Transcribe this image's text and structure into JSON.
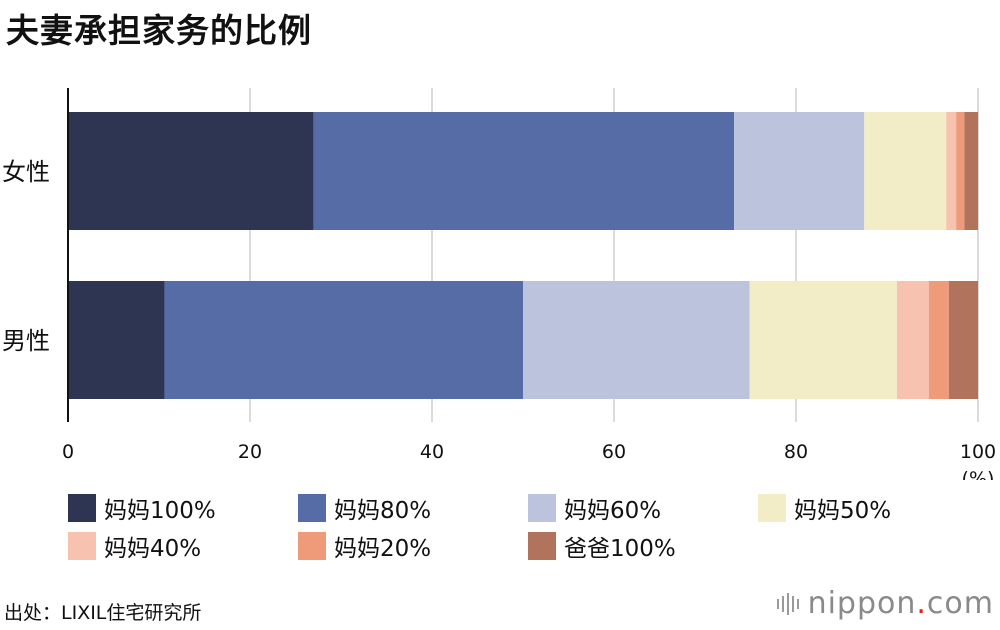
{
  "title": "夫妻承担家务的比例",
  "chart_data": {
    "type": "bar",
    "orientation": "horizontal",
    "stacked": true,
    "categories": [
      "女性",
      "男性"
    ],
    "series": [
      {
        "name": "妈妈100%",
        "color": "#2e3553",
        "values": [
          27.0,
          10.6
        ]
      },
      {
        "name": "妈妈80%",
        "color": "#566ca6",
        "values": [
          46.2,
          39.4
        ]
      },
      {
        "name": "妈妈60%",
        "color": "#bcc3dd",
        "values": [
          14.3,
          24.9
        ]
      },
      {
        "name": "妈妈50%",
        "color": "#f2edc6",
        "values": [
          9.0,
          16.2
        ]
      },
      {
        "name": "妈妈40%",
        "color": "#f7c3b0",
        "values": [
          1.1,
          3.5
        ]
      },
      {
        "name": "妈妈20%",
        "color": "#ef9a78",
        "values": [
          0.9,
          2.2
        ]
      },
      {
        "name": "爸爸100%",
        "color": "#b1735c",
        "values": [
          1.5,
          3.2
        ]
      }
    ],
    "xticks": [
      "0",
      "20",
      "40",
      "60",
      "80",
      "100"
    ],
    "xlim": [
      0,
      100
    ],
    "xunit": "(%)",
    "grid": true,
    "legend_position": "bottom"
  },
  "source": "出处：LIXIL住宅研究所",
  "logo": {
    "name": "nippon",
    "dot": ".",
    "tld": "com"
  }
}
